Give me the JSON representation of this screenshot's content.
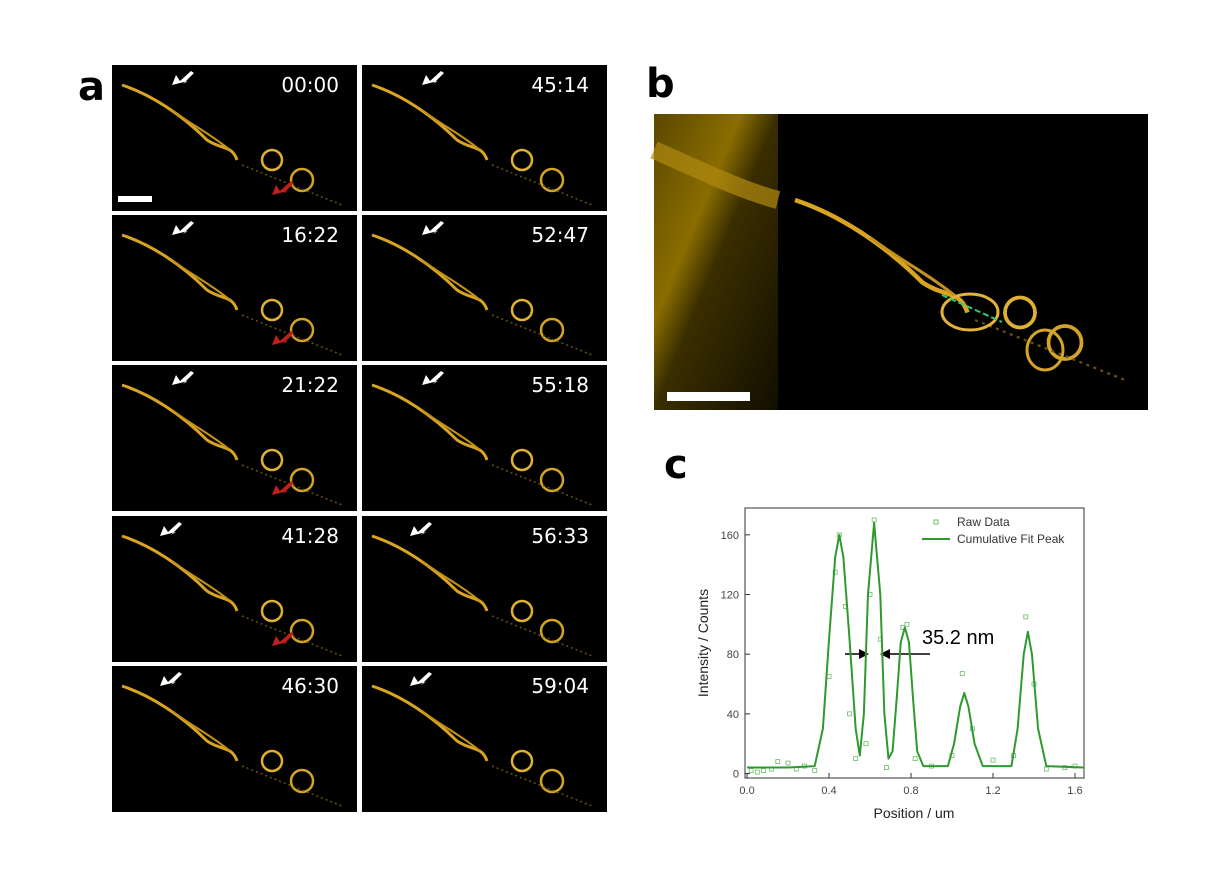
{
  "labels": [
    "a",
    "b",
    "c"
  ],
  "timestamps": [
    "00:00",
    "16:22",
    "21:22",
    "41:28",
    "46:30",
    "45:14",
    "52:47",
    "55:18",
    "56:33",
    "59:04"
  ],
  "chart_data": {
    "type": "line",
    "x_label": "Position / um",
    "y_label": "Intensity / Counts",
    "annotation": "35.2 nm",
    "xlim": [
      -0.01,
      1.644
    ],
    "ylim": [
      -3,
      178
    ],
    "xticks": [
      {
        "value": 0,
        "label": "0.0"
      },
      0.4,
      0.8,
      1.2,
      1.6
    ],
    "yticks": [
      0,
      40,
      80,
      120,
      160
    ],
    "series": [
      {
        "name": "Raw Data",
        "color": "#6dbb6d",
        "marker": "square",
        "x": [
          0.02,
          0.05,
          0.08,
          0.12,
          0.15,
          0.2,
          0.24,
          0.28,
          0.33,
          0.4,
          0.43,
          0.45,
          0.48,
          0.5,
          0.53,
          0.58,
          0.6,
          0.62,
          0.65,
          0.68,
          0.76,
          0.78,
          0.82,
          0.9,
          1.0,
          1.05,
          1.1,
          1.2,
          1.3,
          1.36,
          1.4,
          1.46,
          1.55,
          1.6
        ],
        "values": [
          2,
          1,
          2,
          3,
          8,
          7,
          3,
          5,
          2,
          65,
          135,
          160,
          112,
          40,
          10,
          20,
          120,
          170,
          90,
          4,
          98,
          100,
          10,
          5,
          12,
          67,
          30,
          9,
          12,
          105,
          60,
          3,
          4,
          5
        ]
      },
      {
        "name": "Cumulative Fit Peak",
        "color": "#2e9a2e",
        "x": [
          0.0,
          0.2,
          0.33,
          0.37,
          0.4,
          0.43,
          0.45,
          0.47,
          0.5,
          0.53,
          0.55,
          0.57,
          0.59,
          0.62,
          0.65,
          0.67,
          0.69,
          0.71,
          0.73,
          0.75,
          0.77,
          0.79,
          0.81,
          0.83,
          0.86,
          0.98,
          1.01,
          1.04,
          1.06,
          1.08,
          1.11,
          1.15,
          1.29,
          1.32,
          1.35,
          1.37,
          1.39,
          1.42,
          1.46,
          1.64
        ],
        "values": [
          4,
          4,
          5,
          30,
          90,
          145,
          160,
          145,
          90,
          30,
          12,
          40,
          120,
          168,
          120,
          40,
          10,
          15,
          50,
          88,
          98,
          88,
          50,
          15,
          5,
          5,
          20,
          45,
          54,
          45,
          20,
          5,
          5,
          30,
          80,
          95,
          80,
          30,
          5,
          4
        ]
      }
    ]
  }
}
